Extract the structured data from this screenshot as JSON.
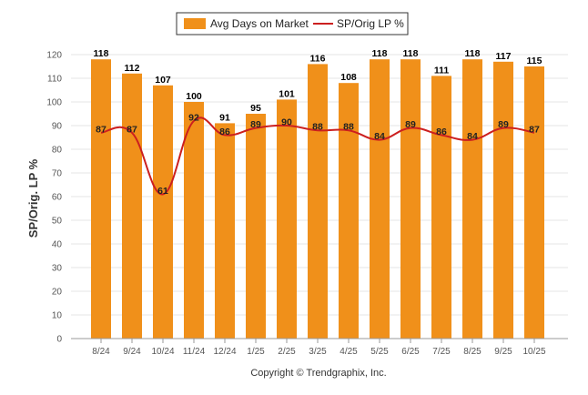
{
  "chart_data": {
    "type": "bar",
    "title": "",
    "categories": [
      "8/24",
      "9/24",
      "10/24",
      "11/24",
      "12/24",
      "1/25",
      "2/25",
      "3/25",
      "4/25",
      "5/25",
      "6/25",
      "7/25",
      "8/25",
      "9/25",
      "10/25"
    ],
    "series": [
      {
        "name": "Avg Days on Market",
        "type": "bar",
        "color": "#F0901A",
        "values": [
          118,
          112,
          107,
          100,
          91,
          95,
          101,
          116,
          108,
          118,
          118,
          111,
          118,
          117,
          115
        ]
      },
      {
        "name": "SP/Orig LP %",
        "type": "line",
        "color": "#CC1F1F",
        "values": [
          87,
          87,
          61,
          92,
          86,
          89,
          90,
          88,
          88,
          84,
          89,
          86,
          84,
          89,
          87
        ]
      }
    ],
    "ylabel": "SP/Orig. LP %",
    "xlabel": "",
    "ylim": [
      0,
      120
    ],
    "yticks": [
      0,
      10,
      20,
      30,
      40,
      50,
      60,
      70,
      80,
      90,
      100,
      110,
      120
    ],
    "grid": true,
    "legend_position": "top-center"
  },
  "footer": {
    "copyright": "Copyright © Trendgraphix, Inc."
  },
  "colors": {
    "bar": "#F0901A",
    "line": "#CC1F1F",
    "grid": "#E6E6E6"
  }
}
